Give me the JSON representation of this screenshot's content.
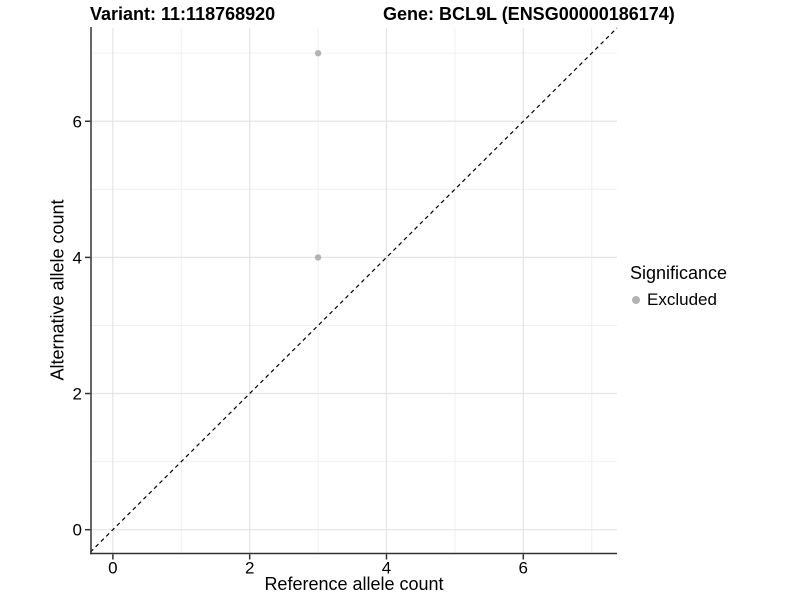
{
  "chart_data": {
    "type": "scatter",
    "title_left": "Variant: 11:118768920",
    "title_right": "Gene: BCL9L (ENSG00000186174)",
    "xlabel": "Reference allele count",
    "ylabel": "Alternative allele count",
    "xlim": [
      -0.32,
      7.37
    ],
    "ylim": [
      -0.35,
      7.37
    ],
    "x_major_ticks": [
      0,
      2,
      4,
      6
    ],
    "y_major_ticks": [
      0,
      2,
      4,
      6
    ],
    "x_minor_ticks": [
      1,
      3,
      5,
      7
    ],
    "y_minor_ticks": [
      1,
      3,
      5,
      7
    ],
    "grid": true,
    "identity_line": {
      "style": "dashed",
      "color": "#000000",
      "from": [
        -0.33,
        -0.33
      ],
      "to": [
        7.37,
        7.37
      ]
    },
    "series": [
      {
        "name": "Excluded",
        "color": "#b3b3b3",
        "points": [
          {
            "x": 3,
            "y": 7
          },
          {
            "x": 3,
            "y": 4
          }
        ]
      }
    ],
    "legend": {
      "position": "right",
      "title": "Significance",
      "items": [
        {
          "label": "Excluded",
          "color": "#b3b3b3",
          "marker": "circle"
        }
      ]
    }
  },
  "colors": {
    "background": "#ffffff",
    "grid_major": "#e4e4e4",
    "grid_minor": "#f0f0f0",
    "axis_line": "#333333",
    "text": "#000000",
    "excluded_point": "#b3b3b3"
  }
}
